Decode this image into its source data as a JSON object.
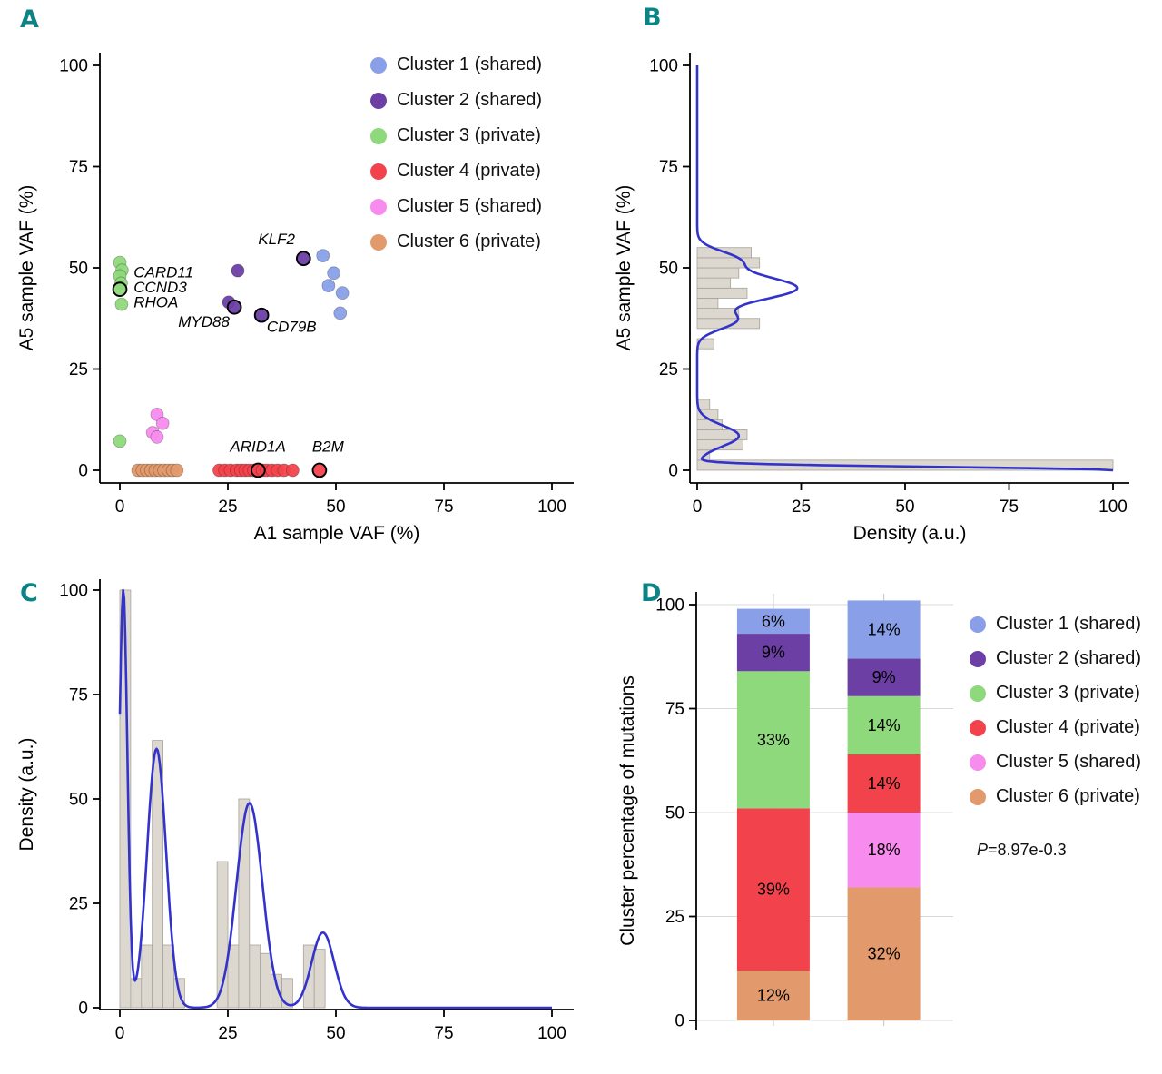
{
  "figure": {
    "background": "#ffffff",
    "panel_label_color": "#0C8385",
    "density_line_color": "#3333CC",
    "hist_fill": "#DCD8CF",
    "hist_stroke": "#A8A399",
    "grid_color": "#D8D8D8"
  },
  "clusters": [
    {
      "label": "Cluster 1 (shared)",
      "color": "#89A0E8"
    },
    {
      "label": "Cluster 2 (shared)",
      "color": "#6C3FA4"
    },
    {
      "label": "Cluster 3 (private)",
      "color": "#8ED97B"
    },
    {
      "label": "Cluster 4 (private)",
      "color": "#F2434C"
    },
    {
      "label": "Cluster 5 (shared)",
      "color": "#F78BEE"
    },
    {
      "label": "Cluster 6 (private)",
      "color": "#E2996B"
    }
  ],
  "panelA": {
    "label": "A",
    "xlabel": "A1 sample VAF (%)",
    "ylabel": "A5 sample VAF (%)"
  },
  "panelB": {
    "label": "B",
    "xlabel": "Density (a.u.)",
    "ylabel": "A5 sample VAF (%)"
  },
  "panelC": {
    "label": "C",
    "ylabel": "Density (a.u.)"
  },
  "panelD": {
    "label": "D",
    "ylabel": "Cluster percentage of mutations",
    "p_label": "P",
    "p_value": "=8.97e-0.3"
  },
  "chart_data": [
    {
      "panel": "A",
      "type": "scatter",
      "xlabel": "A1 sample VAF (%)",
      "ylabel": "A5 sample VAF (%)",
      "xlim": [
        0,
        100
      ],
      "ylim": [
        0,
        100
      ],
      "xticks": [
        0,
        25,
        50,
        75,
        100
      ],
      "yticks": [
        0,
        25,
        50,
        75,
        100
      ],
      "legend_position": "top-right-inside",
      "series": [
        {
          "name": "Cluster 1 (shared)",
          "points": [
            [
              47,
              53
            ],
            [
              49.5,
              48.7
            ],
            [
              48.3,
              45.6
            ],
            [
              51.5,
              43.8
            ],
            [
              51,
              38.8
            ]
          ]
        },
        {
          "name": "Cluster 2 (shared)",
          "points": [
            [
              27.3,
              49.3
            ],
            [
              25.2,
              41.5
            ],
            [
              26.5,
              40.3
            ],
            [
              32.8,
              38.3
            ],
            [
              42.5,
              52.3
            ]
          ]
        },
        {
          "name": "Cluster 3 (private)",
          "points": [
            [
              0,
              51.3
            ],
            [
              0.5,
              49.4
            ],
            [
              0,
              48
            ],
            [
              0.3,
              46.2
            ],
            [
              0,
              44.7
            ],
            [
              0.4,
              41
            ],
            [
              0,
              7.2
            ]
          ]
        },
        {
          "name": "Cluster 4 (private)",
          "points": [
            [
              23,
              0
            ],
            [
              24.3,
              0
            ],
            [
              25.6,
              0
            ],
            [
              27,
              0
            ],
            [
              28,
              0
            ],
            [
              29,
              0
            ],
            [
              30,
              0
            ],
            [
              31,
              0
            ],
            [
              32,
              0
            ],
            [
              33,
              0
            ],
            [
              34,
              0
            ],
            [
              35.2,
              0
            ],
            [
              36.5,
              0
            ],
            [
              38,
              0
            ],
            [
              40,
              0
            ],
            [
              46.2,
              0
            ]
          ]
        },
        {
          "name": "Cluster 5 (shared)",
          "points": [
            [
              8.6,
              13.8
            ],
            [
              9.9,
              11.6
            ],
            [
              7.6,
              9.3
            ],
            [
              8.6,
              8.2
            ]
          ]
        },
        {
          "name": "Cluster 6 (private)",
          "points": [
            [
              4.2,
              0
            ],
            [
              5.2,
              0
            ],
            [
              6.2,
              0
            ],
            [
              7.2,
              0
            ],
            [
              8.2,
              0
            ],
            [
              9.2,
              0
            ],
            [
              10.2,
              0
            ],
            [
              11.2,
              0
            ],
            [
              12.2,
              0
            ],
            [
              13.2,
              0
            ]
          ]
        }
      ],
      "annotations": [
        {
          "gene": "KLF2",
          "point": [
            42.5,
            52.3
          ],
          "label_at": [
            32,
            55.8
          ],
          "ring": true
        },
        {
          "gene": "CARD11",
          "point": [
            0.3,
            46.2
          ],
          "label_at": [
            3.2,
            47.6
          ],
          "ring": false
        },
        {
          "gene": "CCND3",
          "point": [
            0,
            44.7
          ],
          "label_at": [
            3.2,
            43.9
          ],
          "ring": true
        },
        {
          "gene": "RHOA",
          "point": [
            0.4,
            41
          ],
          "label_at": [
            3.2,
            40.2
          ],
          "ring": false
        },
        {
          "gene": "MYD88",
          "point": [
            26.5,
            40.3
          ],
          "label_at": [
            13.5,
            35.4
          ],
          "ring": true
        },
        {
          "gene": "CD79B",
          "point": [
            32.8,
            38.3
          ],
          "label_at": [
            34,
            34.2
          ],
          "ring": true
        },
        {
          "gene": "ARID1A",
          "point": [
            32,
            0
          ],
          "label_at": [
            25.5,
            4.6
          ],
          "ring": true
        },
        {
          "gene": "B2M",
          "point": [
            46.2,
            0
          ],
          "label_at": [
            44.5,
            4.6
          ],
          "ring": true
        }
      ]
    },
    {
      "panel": "B",
      "type": "histogram+density",
      "orientation": "horizontal",
      "xlabel": "Density (a.u.)",
      "ylabel": "A5 sample VAF (%)",
      "xlim": [
        0,
        100
      ],
      "ylim": [
        0,
        100
      ],
      "xticks": [
        0,
        25,
        50,
        75,
        100
      ],
      "yticks": [
        0,
        25,
        50,
        75,
        100
      ],
      "bin_size": 2.5,
      "bins": [
        [
          0,
          100
        ],
        [
          2.5,
          3
        ],
        [
          5,
          11
        ],
        [
          7.5,
          12
        ],
        [
          10,
          6
        ],
        [
          12.5,
          5
        ],
        [
          15,
          3
        ],
        [
          30,
          4
        ],
        [
          35,
          15
        ],
        [
          37.5,
          10
        ],
        [
          40,
          5
        ],
        [
          42.5,
          12
        ],
        [
          45,
          8
        ],
        [
          47.5,
          10
        ],
        [
          50,
          15
        ],
        [
          52.5,
          13
        ]
      ],
      "density_peaks": [
        [
          0,
          100,
          0.8
        ],
        [
          8.5,
          10,
          2.6
        ],
        [
          37,
          9,
          2.2
        ],
        [
          45,
          24,
          3.0
        ],
        [
          52,
          9,
          2.2
        ]
      ]
    },
    {
      "panel": "C",
      "type": "histogram+density",
      "orientation": "vertical",
      "xlabel": "",
      "ylabel": "Density (a.u.)",
      "xlim": [
        0,
        100
      ],
      "ylim": [
        0,
        100
      ],
      "xticks": [
        0,
        25,
        50,
        75,
        100
      ],
      "yticks": [
        0,
        25,
        50,
        75,
        100
      ],
      "bin_size": 2.5,
      "bins": [
        [
          0,
          100
        ],
        [
          2.5,
          7
        ],
        [
          5,
          15
        ],
        [
          7.5,
          64
        ],
        [
          10,
          15
        ],
        [
          12.5,
          7
        ],
        [
          22.5,
          35
        ],
        [
          25,
          15
        ],
        [
          27.5,
          50
        ],
        [
          30,
          15
        ],
        [
          32.5,
          13
        ],
        [
          35,
          8
        ],
        [
          37.5,
          7
        ],
        [
          42.5,
          15
        ],
        [
          45,
          14
        ]
      ],
      "density_peaks": [
        [
          0.8,
          100,
          0.95
        ],
        [
          8.5,
          62,
          2.2
        ],
        [
          30,
          49,
          3.0
        ],
        [
          47,
          18,
          2.6
        ]
      ]
    },
    {
      "panel": "D",
      "type": "stacked-bar",
      "ylabel": "Cluster percentage of mutations",
      "ylim": [
        0,
        100
      ],
      "yticks": [
        0,
        25,
        50,
        75,
        100
      ],
      "annotation": "P=8.97e-0.3",
      "bars": [
        {
          "segments": [
            {
              "cluster_index": 5,
              "value": 12,
              "label": "12%"
            },
            {
              "cluster_index": 3,
              "value": 39,
              "label": "39%"
            },
            {
              "cluster_index": 2,
              "value": 33,
              "label": "33%"
            },
            {
              "cluster_index": 1,
              "value": 9,
              "label": "9%"
            },
            {
              "cluster_index": 0,
              "value": 6,
              "label": "6%"
            }
          ]
        },
        {
          "segments": [
            {
              "cluster_index": 5,
              "value": 32,
              "label": "32%"
            },
            {
              "cluster_index": 4,
              "value": 18,
              "label": "18%"
            },
            {
              "cluster_index": 3,
              "value": 14,
              "label": "14%"
            },
            {
              "cluster_index": 2,
              "value": 14,
              "label": "14%"
            },
            {
              "cluster_index": 1,
              "value": 9,
              "label": "9%"
            },
            {
              "cluster_index": 0,
              "value": 14,
              "label": "14%"
            }
          ]
        }
      ]
    }
  ]
}
